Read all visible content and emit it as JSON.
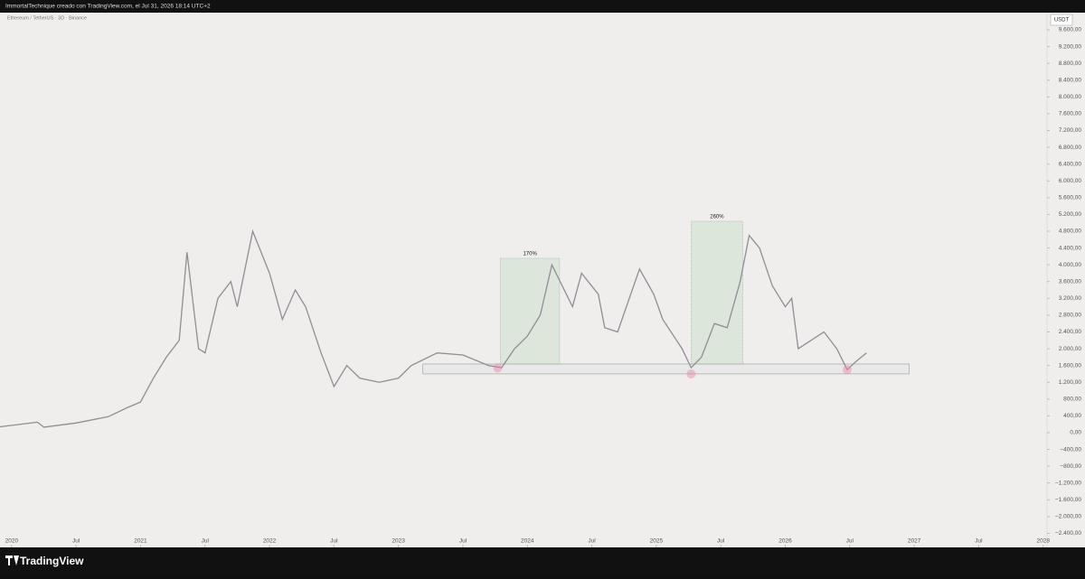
{
  "header": {
    "credit": "ImmortalTechnique creado con TradingView.com, el Jul 31, 2026 18:14 UTC+2"
  },
  "footer": {
    "brand": "TradingView"
  },
  "chart_data": {
    "type": "line",
    "title": "Ethereum / TetherUS · 3D · Binance",
    "currency": "USDT",
    "color": "#8e8e94",
    "xlim": [
      2019.91,
      2028.03
    ],
    "ylim": [
      -2734,
      10009
    ],
    "xticks": [
      {
        "value": 2020,
        "label": "2020"
      },
      {
        "value": 2020.5,
        "label": "Jul"
      },
      {
        "value": 2021,
        "label": "2021"
      },
      {
        "value": 2021.5,
        "label": "Jul"
      },
      {
        "value": 2022,
        "label": "2022"
      },
      {
        "value": 2022.5,
        "label": "Jul"
      },
      {
        "value": 2023,
        "label": "2023"
      },
      {
        "value": 2023.5,
        "label": "Jul"
      },
      {
        "value": 2024,
        "label": "2024"
      },
      {
        "value": 2024.5,
        "label": "Jul"
      },
      {
        "value": 2025,
        "label": "2025"
      },
      {
        "value": 2025.5,
        "label": "Jul"
      },
      {
        "value": 2026,
        "label": "2026"
      },
      {
        "value": 2026.5,
        "label": "Jul"
      },
      {
        "value": 2027,
        "label": "2027"
      },
      {
        "value": 2027.5,
        "label": "Jul"
      },
      {
        "value": 2028,
        "label": "2028"
      }
    ],
    "yticks": [
      {
        "value": 9600,
        "label": "9.600,00"
      },
      {
        "value": 9200,
        "label": "9.200,00"
      },
      {
        "value": 8800,
        "label": "8.800,00"
      },
      {
        "value": 8400,
        "label": "8.400,00"
      },
      {
        "value": 8000,
        "label": "8.000,00"
      },
      {
        "value": 7600,
        "label": "7.600,00"
      },
      {
        "value": 7200,
        "label": "7.200,00"
      },
      {
        "value": 6800,
        "label": "6.800,00"
      },
      {
        "value": 6400,
        "label": "6.400,00"
      },
      {
        "value": 6000,
        "label": "6.000,00"
      },
      {
        "value": 5600,
        "label": "5.600,00"
      },
      {
        "value": 5200,
        "label": "5.200,00"
      },
      {
        "value": 4800,
        "label": "4.800,00"
      },
      {
        "value": 4400,
        "label": "4.400,00"
      },
      {
        "value": 4000,
        "label": "4.000,00"
      },
      {
        "value": 3600,
        "label": "3.600,00"
      },
      {
        "value": 3200,
        "label": "3.200,00"
      },
      {
        "value": 2800,
        "label": "2.800,00"
      },
      {
        "value": 2400,
        "label": "2.400,00"
      },
      {
        "value": 2000,
        "label": "2.000,00"
      },
      {
        "value": 1600,
        "label": "1.600,00"
      },
      {
        "value": 1200,
        "label": "1.200,00"
      },
      {
        "value": 800,
        "label": "800,00"
      },
      {
        "value": 400,
        "label": "400,00"
      },
      {
        "value": 0,
        "label": "0,00"
      },
      {
        "value": -400,
        "label": "−400,00"
      },
      {
        "value": -800,
        "label": "−800,00"
      },
      {
        "value": -1200,
        "label": "−1.200,00"
      },
      {
        "value": -1600,
        "label": "−1.600,00"
      },
      {
        "value": -2000,
        "label": "−2.000,00"
      },
      {
        "value": -2400,
        "label": "−2.400,00"
      }
    ],
    "x": [
      2019.91,
      2020.2,
      2020.25,
      2020.5,
      2020.75,
      2020.9,
      2021.0,
      2021.1,
      2021.2,
      2021.3,
      2021.36,
      2021.45,
      2021.5,
      2021.6,
      2021.7,
      2021.75,
      2021.87,
      2022.0,
      2022.1,
      2022.2,
      2022.28,
      2022.4,
      2022.5,
      2022.6,
      2022.7,
      2022.85,
      2023.0,
      2023.1,
      2023.3,
      2023.5,
      2023.7,
      2023.8,
      2023.9,
      2024.0,
      2024.1,
      2024.19,
      2024.35,
      2024.42,
      2024.55,
      2024.6,
      2024.7,
      2024.87,
      2024.98,
      2025.05,
      2025.2,
      2025.27,
      2025.35,
      2025.45,
      2025.55,
      2025.65,
      2025.72,
      2025.8,
      2025.9,
      2026.0,
      2026.05,
      2026.1,
      2026.2,
      2026.3,
      2026.4,
      2026.48,
      2026.55,
      2026.63
    ],
    "values": [
      140,
      250,
      130,
      230,
      380,
      600,
      730,
      1300,
      1800,
      2200,
      4300,
      2000,
      1900,
      3200,
      3600,
      3000,
      4800,
      3800,
      2700,
      3400,
      3000,
      1900,
      1100,
      1600,
      1300,
      1200,
      1300,
      1600,
      1900,
      1850,
      1600,
      1550,
      2000,
      2300,
      2800,
      4000,
      3000,
      3800,
      3300,
      2500,
      2400,
      3900,
      3300,
      2700,
      2000,
      1550,
      1800,
      2600,
      2500,
      3600,
      4700,
      4400,
      3500,
      3000,
      3200,
      2000,
      2200,
      2400,
      2000,
      1500,
      1700,
      1900
    ],
    "annotations": [
      {
        "text": "170%",
        "x": [
          2023.79,
          2024.25
        ],
        "y": [
          1636,
          4155
        ]
      },
      {
        "text": "260%",
        "x": [
          2025.27,
          2025.67
        ],
        "y": [
          1636,
          5037
        ]
      }
    ],
    "zone": {
      "x": [
        2023.19,
        2026.96
      ],
      "y": [
        1400,
        1636
      ]
    },
    "markers": {
      "x": [
        2023.77,
        2025.27,
        2026.48
      ],
      "y": [
        1540,
        1400,
        1500
      ]
    }
  }
}
